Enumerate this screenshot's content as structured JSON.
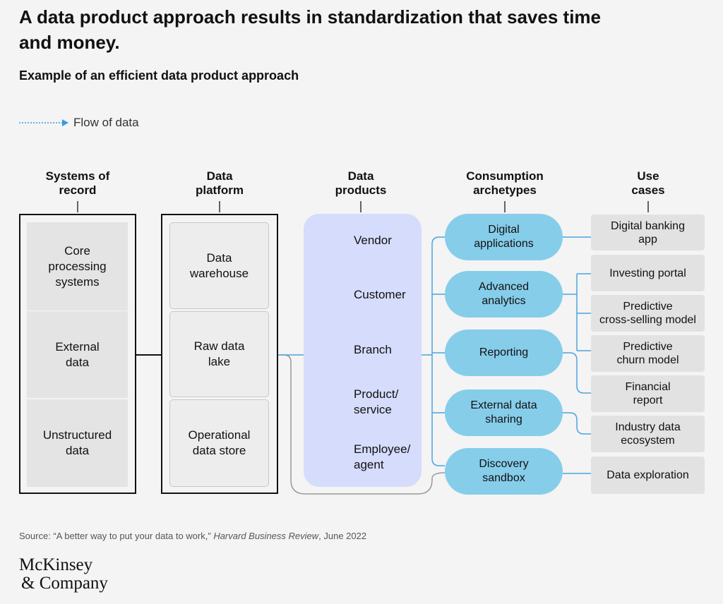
{
  "title": "A data product approach results in standardization that saves time\nand money.",
  "subtitle": "Example of an efficient data product approach",
  "legend": {
    "label": "Flow of data"
  },
  "columns": [
    {
      "heading": "Systems of\nrecord",
      "items": [
        "Core\nprocessing\nsystems",
        "External\ndata",
        "Unstructured\ndata"
      ]
    },
    {
      "heading": "Data\nplatform",
      "items": [
        "Data\nwarehouse",
        "Raw data\nlake",
        "Operational\ndata store"
      ]
    },
    {
      "heading": "Data\nproducts",
      "items": [
        "Vendor",
        "Customer",
        "Branch",
        "Product/\nservice",
        "Employee/\nagent"
      ]
    },
    {
      "heading": "Consumption\narchetypes",
      "items": [
        "Digital\napplications",
        "Advanced\nanalytics",
        "Reporting",
        "External data\nsharing",
        "Discovery\nsandbox"
      ]
    },
    {
      "heading": "Use\ncases",
      "items": [
        "Digital banking\napp",
        "Investing portal",
        "Predictive\ncross-selling model",
        "Predictive\nchurn model",
        "Financial\nreport",
        "Industry data\necosystem",
        "Data exploration"
      ]
    }
  ],
  "source": {
    "prefix": "Source: “A better way to put your data to work,” ",
    "publication": "Harvard Business Review",
    "suffix": ", June 2022"
  },
  "logo": {
    "line1": "McKinsey",
    "line2": "& Company"
  }
}
